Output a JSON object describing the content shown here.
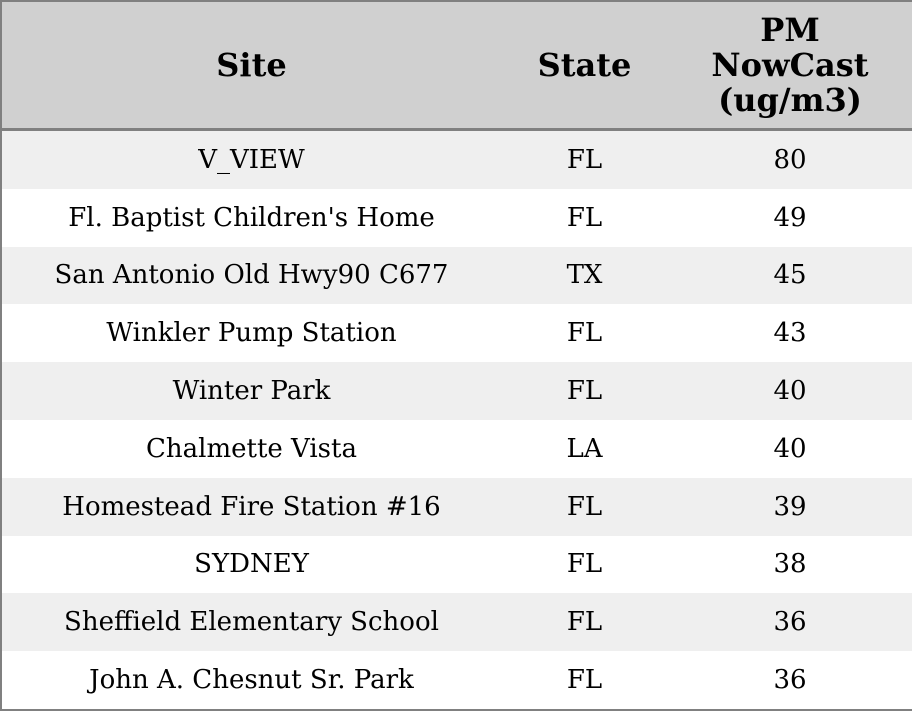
{
  "table": {
    "headers": [
      "Site",
      "State",
      "PM NowCast (ug/m3)"
    ],
    "rows": [
      [
        "V_VIEW",
        "FL",
        80
      ],
      [
        "Fl. Baptist Children's Home",
        "FL",
        49
      ],
      [
        "San Antonio Old Hwy90 C677",
        "TX",
        45
      ],
      [
        "Winkler Pump Station",
        "FL",
        43
      ],
      [
        "Winter Park",
        "FL",
        40
      ],
      [
        "Chalmette Vista",
        "LA",
        40
      ],
      [
        "Homestead Fire Station #16",
        "FL",
        39
      ],
      [
        "SYDNEY",
        "FL",
        38
      ],
      [
        "Sheffield Elementary School",
        "FL",
        36
      ],
      [
        "John A. Chesnut Sr. Park",
        "FL",
        36
      ]
    ]
  }
}
